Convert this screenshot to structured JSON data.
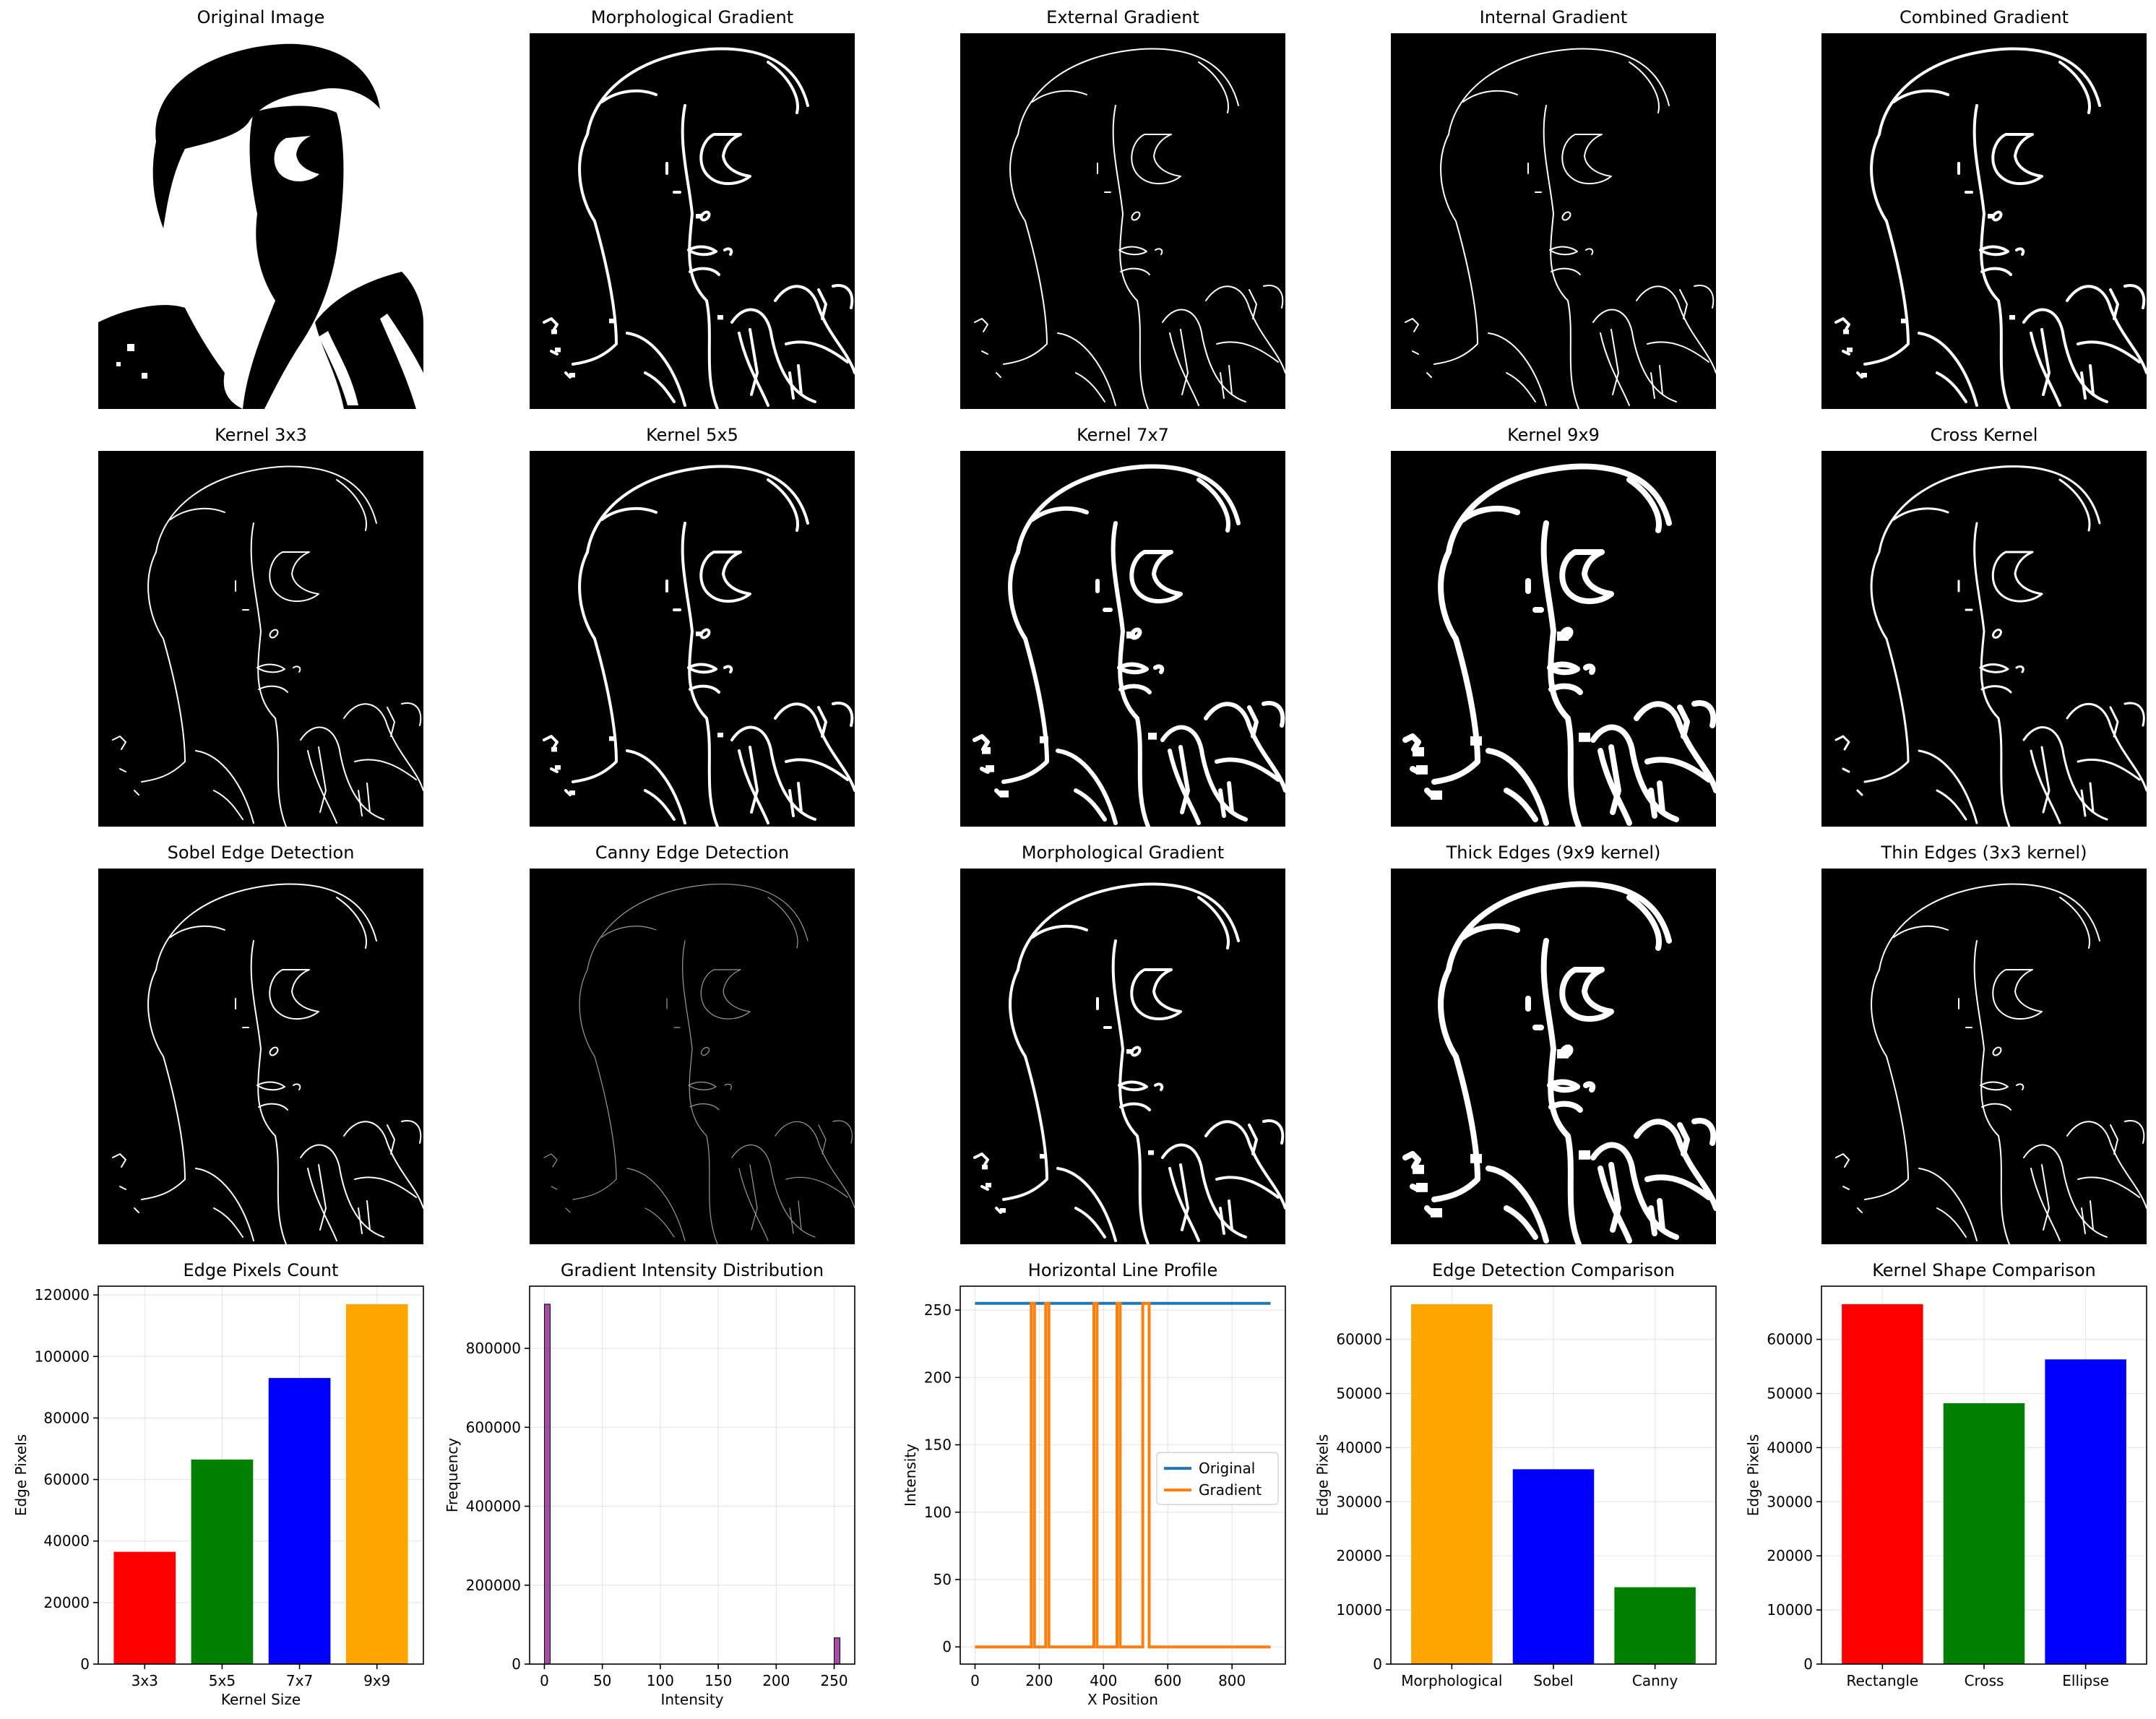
{
  "image_panels": [
    {
      "title": "Original Image",
      "style": "silhouette"
    },
    {
      "title": "Morphological Gradient",
      "style": "edge",
      "thickness": 4
    },
    {
      "title": "External Gradient",
      "style": "edge",
      "thickness": 2
    },
    {
      "title": "Internal Gradient",
      "style": "edge",
      "thickness": 2
    },
    {
      "title": "Combined Gradient",
      "style": "edge",
      "thickness": 4
    },
    {
      "title": "Kernel 3x3",
      "style": "edge",
      "thickness": 2
    },
    {
      "title": "Kernel 5x5",
      "style": "edge",
      "thickness": 4
    },
    {
      "title": "Kernel 7x7",
      "style": "edge",
      "thickness": 6
    },
    {
      "title": "Kernel 9x9",
      "style": "edge",
      "thickness": 8
    },
    {
      "title": "Cross Kernel",
      "style": "edge",
      "thickness": 3
    },
    {
      "title": "Sobel Edge Detection",
      "style": "edge",
      "thickness": 2
    },
    {
      "title": "Canny Edge Detection",
      "style": "edge",
      "thickness": 1.2,
      "color": "#9a9a9a"
    },
    {
      "title": "Morphological Gradient",
      "style": "edge",
      "thickness": 4
    },
    {
      "title": "Thick Edges (9x9 kernel)",
      "style": "edge",
      "thickness": 8
    },
    {
      "title": "Thin Edges (3x3 kernel)",
      "style": "edge",
      "thickness": 2
    }
  ],
  "chart_data": [
    {
      "type": "bar",
      "title": "Edge Pixels Count",
      "xlabel": "Kernel Size",
      "ylabel": "Edge Pixels",
      "categories": [
        "3x3",
        "5x5",
        "7x7",
        "9x9"
      ],
      "values": [
        36500,
        66500,
        93000,
        117000
      ],
      "colors": [
        "#ff0000",
        "#008000",
        "#0000ff",
        "#ffa500"
      ],
      "ylim": [
        0,
        122850
      ],
      "yticks": [
        0,
        20000,
        40000,
        60000,
        80000,
        100000,
        120000
      ],
      "grid": true
    },
    {
      "type": "bar",
      "title": "Gradient Intensity Distribution",
      "xlabel": "Intensity",
      "ylabel": "Frequency",
      "categories": [
        "0",
        "255"
      ],
      "bins": [
        {
          "x0": 0,
          "x1": 5,
          "value": 912000
        },
        {
          "x0": 250,
          "x1": 255,
          "value": 66500
        }
      ],
      "color": "#800080",
      "xlim": [
        -12.75,
        267.75
      ],
      "ylim": [
        0,
        957600
      ],
      "xticks": [
        0,
        50,
        100,
        150,
        200,
        250
      ],
      "yticks": [
        0,
        200000,
        400000,
        600000,
        800000
      ],
      "grid": true
    },
    {
      "type": "line",
      "title": "Horizontal Line Profile",
      "xlabel": "X Position",
      "ylabel": "Intensity",
      "xlim": [
        -46,
        966
      ],
      "ylim": [
        -12.75,
        267.75
      ],
      "xticks": [
        0,
        200,
        400,
        600,
        800
      ],
      "yticks": [
        0,
        50,
        100,
        150,
        200,
        250
      ],
      "legend": "center-right",
      "grid": true,
      "series": [
        {
          "name": "Original",
          "color": "#1f77b4",
          "x": [
            0,
            920
          ],
          "y": [
            255,
            255
          ]
        },
        {
          "name": "Gradient",
          "color": "#ff7f0e",
          "x": [
            0,
            175,
            175,
            185,
            185,
            220,
            220,
            230,
            230,
            370,
            370,
            380,
            380,
            442,
            442,
            452,
            452,
            522,
            522,
            532,
            532,
            542,
            542,
            920
          ],
          "y": [
            0,
            0,
            255,
            255,
            0,
            0,
            255,
            255,
            0,
            0,
            255,
            255,
            0,
            0,
            255,
            255,
            0,
            0,
            255,
            255,
            255,
            255,
            0,
            0
          ]
        }
      ]
    },
    {
      "type": "bar",
      "title": "Edge Detection Comparison",
      "xlabel": "",
      "ylabel": "Edge Pixels",
      "categories": [
        "Morphological",
        "Sobel",
        "Canny"
      ],
      "values": [
        66500,
        36000,
        14200
      ],
      "colors": [
        "#ffa500",
        "#0000ff",
        "#008000"
      ],
      "ylim": [
        0,
        69825
      ],
      "yticks": [
        0,
        10000,
        20000,
        30000,
        40000,
        50000,
        60000
      ],
      "grid": true
    },
    {
      "type": "bar",
      "title": "Kernel Shape Comparison",
      "xlabel": "",
      "ylabel": "Edge Pixels",
      "categories": [
        "Rectangle",
        "Cross",
        "Ellipse"
      ],
      "values": [
        66500,
        48200,
        56300
      ],
      "colors": [
        "#ff0000",
        "#008000",
        "#0000ff"
      ],
      "ylim": [
        0,
        69825
      ],
      "yticks": [
        0,
        10000,
        20000,
        30000,
        40000,
        50000,
        60000
      ],
      "grid": true
    }
  ]
}
